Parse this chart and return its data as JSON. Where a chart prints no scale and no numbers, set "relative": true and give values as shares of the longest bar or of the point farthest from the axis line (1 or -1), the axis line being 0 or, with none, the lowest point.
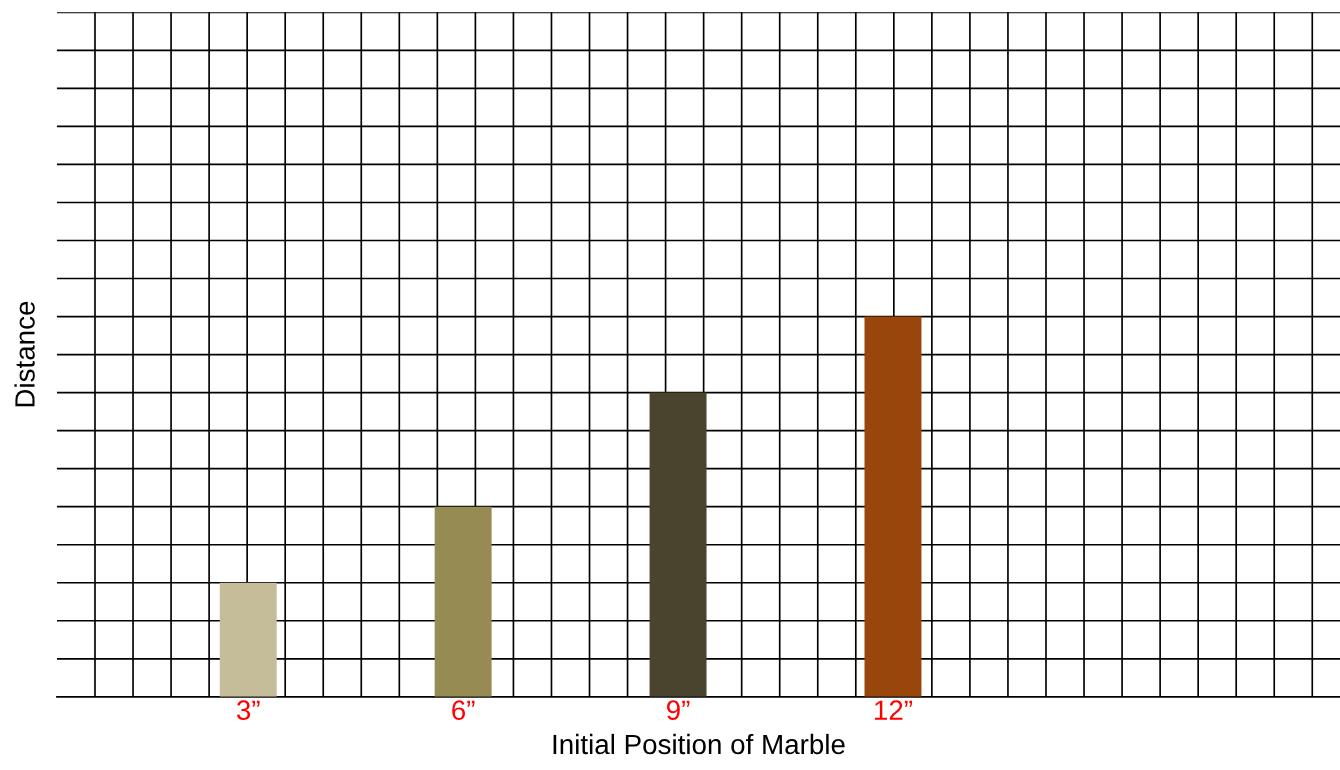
{
  "chart_data": {
    "type": "bar",
    "xlabel": "Initial Position of Marble",
    "ylabel": "Distance",
    "categories": [
      "3”",
      "6”",
      "9”",
      "12”"
    ],
    "values": [
      0.3,
      0.5,
      0.8,
      1.0
    ],
    "colors": [
      "#c5bd9a",
      "#978b54",
      "#4a432e",
      "#98460b"
    ],
    "relative": true,
    "grid": true
  }
}
